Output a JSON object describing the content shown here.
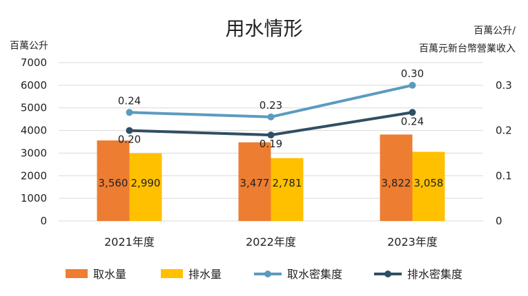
{
  "chart_data": {
    "type": "bar",
    "title": "用水情形",
    "ylabel": "百萬公升",
    "y2label": [
      "百萬公升/",
      "百萬元新台幣營業收入"
    ],
    "categories": [
      "2021年度",
      "2022年度",
      "2023年度"
    ],
    "ylim": [
      0,
      7000
    ],
    "yticks": [
      0,
      1000,
      2000,
      3000,
      4000,
      5000,
      6000,
      7000
    ],
    "y2lim": [
      0,
      0.35
    ],
    "y2ticks": [
      0,
      0.1,
      0.2,
      0.3
    ],
    "y2ticklabels": [
      "0",
      "0.1",
      "0.2",
      "0.3"
    ],
    "grid": true,
    "legend": "bottom",
    "series": [
      {
        "name": "取水量",
        "type": "bar",
        "axis": "left",
        "color": "#ED7D31",
        "values": [
          3560,
          3477,
          3822
        ],
        "labels": [
          "3,560",
          "3,477",
          "3,822"
        ]
      },
      {
        "name": "排水量",
        "type": "bar",
        "axis": "left",
        "color": "#FFC000",
        "values": [
          2990,
          2781,
          3058
        ],
        "labels": [
          "2,990",
          "2,781",
          "3,058"
        ]
      },
      {
        "name": "取水密集度",
        "type": "line",
        "axis": "right",
        "color": "#5B9BBF",
        "values": [
          0.24,
          0.23,
          0.3
        ],
        "labels": [
          "0.24",
          "0.23",
          "0.30"
        ]
      },
      {
        "name": "排水密集度",
        "type": "line",
        "axis": "right",
        "color": "#2F4F63",
        "values": [
          0.2,
          0.19,
          0.24
        ],
        "labels": [
          "0.20",
          "0.19",
          "0.24"
        ]
      }
    ]
  }
}
